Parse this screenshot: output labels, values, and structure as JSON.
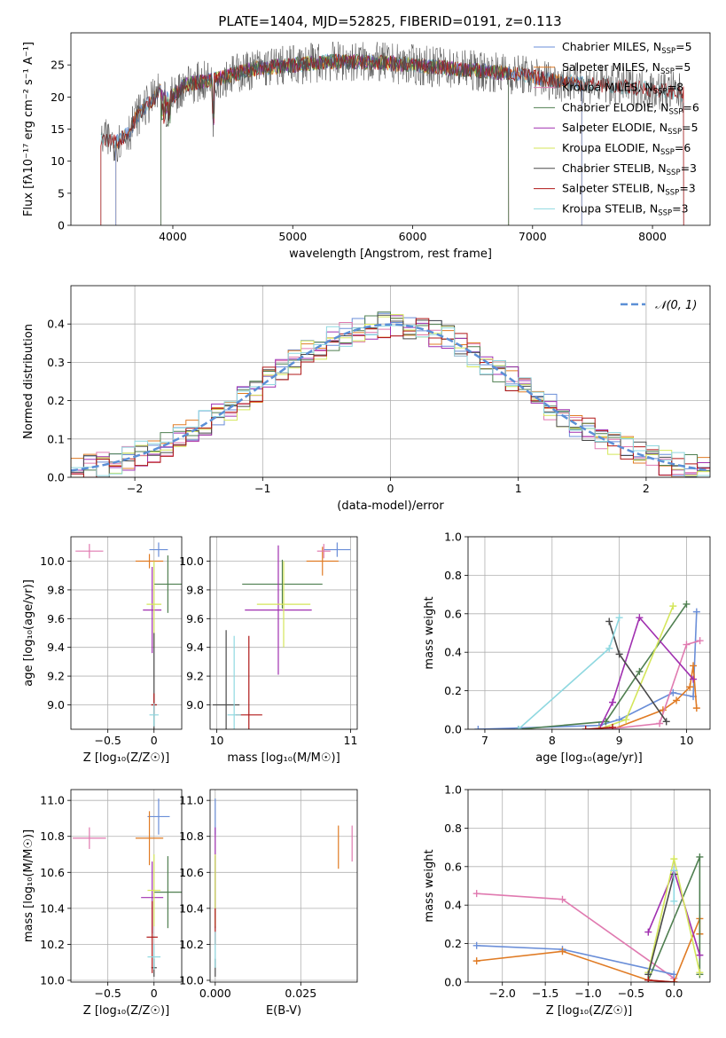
{
  "figure": {
    "title": "PLATE=1404, MJD=52825, FIBERID=0191, z=0.113"
  },
  "colors": {
    "Chabrier MILES": "#6a8ed8",
    "Salpeter MILES": "#e07b24",
    "Kroupa MILES": "#e07ab0",
    "Chabrier ELODIE": "#4f7f50",
    "Salpeter ELODIE": "#a030b0",
    "Kroupa ELODIE": "#d4e65a",
    "Chabrier STELIB": "#4a4a4a",
    "Salpeter STELIB": "#b01818",
    "Kroupa STELIB": "#8fd8e0",
    "gaussian": "#5b8fd6"
  },
  "chart_data": [
    {
      "id": "spectrum",
      "type": "line",
      "title": "PLATE=1404, MJD=52825, FIBERID=0191, z=0.113",
      "xlabel": "wavelength [Angstrom, rest frame]",
      "ylabel": "Flux [fλ10⁻¹⁷ erg cm⁻² s⁻¹ A⁻¹]",
      "xlim": [
        3150,
        8480
      ],
      "ylim": [
        0,
        30
      ],
      "xticks": [
        4000,
        5000,
        6000,
        7000,
        8000
      ],
      "yticks": [
        0,
        5,
        10,
        15,
        20,
        25
      ],
      "legend_position": "top-right",
      "legend": [
        {
          "label": "Chabrier MILES, N",
          "sub": "SSP",
          "suffix": "=5",
          "series": "Chabrier MILES"
        },
        {
          "label": "Salpeter MILES, N",
          "sub": "SSP",
          "suffix": "=5",
          "series": "Salpeter MILES"
        },
        {
          "label": "Kroupa MILES, N",
          "sub": "SSP",
          "suffix": "=8",
          "series": "Kroupa MILES"
        },
        {
          "label": "Chabrier ELODIE, N",
          "sub": "SSP",
          "suffix": "=6",
          "series": "Chabrier ELODIE"
        },
        {
          "label": "Salpeter ELODIE, N",
          "sub": "SSP",
          "suffix": "=5",
          "series": "Salpeter ELODIE"
        },
        {
          "label": "Kroupa ELODIE, N",
          "sub": "SSP",
          "suffix": "=6",
          "series": "Kroupa ELODIE"
        },
        {
          "label": "Chabrier STELIB, N",
          "sub": "SSP",
          "suffix": "=3",
          "series": "Chabrier STELIB"
        },
        {
          "label": "Salpeter STELIB, N",
          "sub": "SSP",
          "suffix": "=3",
          "series": "Salpeter STELIB"
        },
        {
          "label": "Kroupa STELIB, N",
          "sub": "SSP",
          "suffix": "=3",
          "series": "Kroupa STELIB"
        }
      ],
      "continuum": [
        [
          3400,
          13.5
        ],
        [
          3550,
          13
        ],
        [
          3650,
          15
        ],
        [
          3700,
          17
        ],
        [
          3800,
          19
        ],
        [
          3900,
          21
        ],
        [
          4000,
          20
        ],
        [
          4100,
          22
        ],
        [
          4300,
          22.5
        ],
        [
          4500,
          23.5
        ],
        [
          4700,
          24.5
        ],
        [
          5000,
          25
        ],
        [
          5300,
          25.5
        ],
        [
          5600,
          25.5
        ],
        [
          6000,
          25
        ],
        [
          6300,
          24.5
        ],
        [
          6600,
          24
        ],
        [
          6900,
          23.5
        ],
        [
          7200,
          22.5
        ],
        [
          7500,
          22
        ],
        [
          7800,
          21.5
        ],
        [
          8100,
          21
        ],
        [
          8260,
          20.5
        ]
      ],
      "model_coverage": {
        "MILES": [
          3525,
          7410
        ],
        "ELODIE": [
          3900,
          6800
        ],
        "STELIB": [
          3400,
          8260
        ]
      }
    },
    {
      "id": "residuals",
      "type": "histogram",
      "xlabel": "(data-model)/error",
      "ylabel": "Normed distribution",
      "xlim": [
        -2.5,
        2.5
      ],
      "ylim": [
        0,
        0.5
      ],
      "xticks": [
        -2,
        -1,
        0,
        1,
        2
      ],
      "yticks": [
        0.0,
        0.1,
        0.2,
        0.3,
        0.4
      ],
      "bin_width": 0.1,
      "legend_position": "top-right",
      "legend": [
        {
          "label": "𝒩(0, 1)",
          "style": "dashed"
        }
      ],
      "gaussian": {
        "mu": 0,
        "sigma": 1
      }
    },
    {
      "id": "age-vs-Z",
      "type": "scatter",
      "xlabel": "Z [log₁₀(Z/Z☉)]",
      "ylabel": "age  [log₁₀(age/yr)]",
      "xlim": [
        -0.9,
        0.3
      ],
      "ylim": [
        8.83,
        10.17
      ],
      "xticks": [
        -0.5,
        0.0
      ],
      "yticks": [
        9.0,
        9.2,
        9.4,
        9.6,
        9.8,
        10.0
      ],
      "points": [
        {
          "series": "Chabrier MILES",
          "x": 0.05,
          "y": 10.08,
          "xerr": 0.1,
          "yerr": 0.05
        },
        {
          "series": "Salpeter MILES",
          "x": -0.05,
          "y": 10.0,
          "xerr": 0.15,
          "yerr": 0.05
        },
        {
          "series": "Kroupa MILES",
          "x": -0.7,
          "y": 10.07,
          "xerr": 0.15,
          "yerr": 0.05
        },
        {
          "series": "Chabrier ELODIE",
          "x": 0.15,
          "y": 9.84,
          "xerr": 0.15,
          "yerr": 0.2
        },
        {
          "series": "Salpeter ELODIE",
          "x": -0.02,
          "y": 9.66,
          "xerr": 0.1,
          "yerr": 0.3
        },
        {
          "series": "Kroupa ELODIE",
          "x": 0.0,
          "y": 9.7,
          "xerr": 0.08,
          "yerr": 0.3
        },
        {
          "series": "Chabrier STELIB",
          "x": 0.0,
          "y": 9.0,
          "xerr": 0.03,
          "yerr": 0.5
        },
        {
          "series": "Salpeter STELIB",
          "x": 0.0,
          "y": 9.0,
          "xerr": 0.03,
          "yerr": 0.08
        },
        {
          "series": "Kroupa STELIB",
          "x": 0.0,
          "y": 8.93,
          "xerr": 0.05,
          "yerr": 0.08
        }
      ]
    },
    {
      "id": "age-vs-mass",
      "type": "scatter",
      "xlabel": "mass [log₁₀(M/M☉)]",
      "ylabel": "",
      "xlim": [
        9.95,
        11.05
      ],
      "ylim": [
        8.83,
        10.17
      ],
      "xticks": [
        10,
        11
      ],
      "yticks": [
        9.0,
        9.2,
        9.4,
        9.6,
        9.8,
        10.0
      ],
      "points": [
        {
          "series": "Chabrier MILES",
          "x": 10.9,
          "y": 10.08,
          "xerr": 0.1,
          "yerr": 0.05
        },
        {
          "series": "Salpeter MILES",
          "x": 10.79,
          "y": 10.0,
          "xerr": 0.12,
          "yerr": 0.1
        },
        {
          "series": "Kroupa MILES",
          "x": 10.8,
          "y": 10.07,
          "xerr": 0.05,
          "yerr": 0.05
        },
        {
          "series": "Chabrier ELODIE",
          "x": 10.49,
          "y": 9.84,
          "xerr": 0.3,
          "yerr": 0.17
        },
        {
          "series": "Salpeter ELODIE",
          "x": 10.46,
          "y": 9.66,
          "xerr": 0.25,
          "yerr": 0.45
        },
        {
          "series": "Kroupa ELODIE",
          "x": 10.5,
          "y": 9.7,
          "xerr": 0.2,
          "yerr": 0.3
        },
        {
          "series": "Chabrier STELIB",
          "x": 10.07,
          "y": 9.0,
          "xerr": 0.1,
          "yerr": 0.52
        },
        {
          "series": "Salpeter STELIB",
          "x": 10.24,
          "y": 8.93,
          "xerr": 0.1,
          "yerr": 0.55
        },
        {
          "series": "Kroupa STELIB",
          "x": 10.13,
          "y": 8.93,
          "xerr": 0.05,
          "yerr": 0.55
        }
      ]
    },
    {
      "id": "weight-vs-age",
      "type": "line",
      "xlabel": "age  [log₁₀(age/yr)]",
      "ylabel": "mass weight",
      "xlim": [
        6.75,
        10.35
      ],
      "ylim": [
        0,
        1
      ],
      "xticks": [
        7,
        8,
        9,
        10
      ],
      "yticks": [
        0.0,
        0.2,
        0.4,
        0.6,
        0.8,
        1.0
      ],
      "series": [
        {
          "name": "Chabrier MILES",
          "x": [
            6.9,
            8.7,
            9.0,
            9.8,
            10.1,
            10.15
          ],
          "y": [
            0.0,
            0.02,
            0.05,
            0.19,
            0.17,
            0.61
          ]
        },
        {
          "name": "Salpeter MILES",
          "x": [
            8.9,
            9.65,
            9.85,
            10.05,
            10.1,
            10.15
          ],
          "y": [
            0.0,
            0.1,
            0.15,
            0.22,
            0.33,
            0.11
          ]
        },
        {
          "name": "Kroupa MILES",
          "x": [
            8.8,
            9.6,
            10.0,
            10.2
          ],
          "y": [
            0.0,
            0.03,
            0.44,
            0.46
          ]
        },
        {
          "name": "Chabrier ELODIE",
          "x": [
            7.5,
            8.8,
            9.3,
            10.0
          ],
          "y": [
            0.0,
            0.04,
            0.3,
            0.65
          ]
        },
        {
          "name": "Salpeter ELODIE",
          "x": [
            8.7,
            8.9,
            9.3,
            10.1
          ],
          "y": [
            0.0,
            0.14,
            0.58,
            0.26
          ]
        },
        {
          "name": "Kroupa ELODIE",
          "x": [
            8.7,
            9.1,
            9.8
          ],
          "y": [
            0.0,
            0.05,
            0.64
          ]
        },
        {
          "name": "Chabrier STELIB",
          "x": [
            8.85,
            9.0,
            9.7
          ],
          "y": [
            0.56,
            0.39,
            0.04
          ]
        },
        {
          "name": "Salpeter STELIB",
          "x": [
            8.5,
            8.9
          ],
          "y": [
            0.0,
            0.01
          ]
        },
        {
          "name": "Kroupa STELIB",
          "x": [
            7.5,
            8.85,
            9.0
          ],
          "y": [
            0.0,
            0.42,
            0.58
          ]
        }
      ]
    },
    {
      "id": "mass-vs-Z",
      "type": "scatter",
      "xlabel": "Z [log₁₀(Z/Z☉)]",
      "ylabel": "mass [log₁₀(M/M☉)]",
      "xlim": [
        -0.9,
        0.3
      ],
      "ylim": [
        9.99,
        11.06
      ],
      "xticks": [
        -0.5,
        0.0
      ],
      "yticks": [
        10.0,
        10.2,
        10.4,
        10.6,
        10.8,
        11.0
      ],
      "points": [
        {
          "series": "Chabrier MILES",
          "x": 0.05,
          "y": 10.91,
          "xerr": 0.12,
          "yerr": 0.1
        },
        {
          "series": "Salpeter MILES",
          "x": -0.05,
          "y": 10.79,
          "xerr": 0.15,
          "yerr": 0.15
        },
        {
          "series": "Kroupa MILES",
          "x": -0.7,
          "y": 10.79,
          "xerr": 0.18,
          "yerr": 0.06
        },
        {
          "series": "Chabrier ELODIE",
          "x": 0.15,
          "y": 10.49,
          "xerr": 0.15,
          "yerr": 0.2
        },
        {
          "series": "Salpeter ELODIE",
          "x": -0.02,
          "y": 10.46,
          "xerr": 0.12,
          "yerr": 0.2
        },
        {
          "series": "Kroupa ELODIE",
          "x": 0.0,
          "y": 10.5,
          "xerr": 0.07,
          "yerr": 0.2
        },
        {
          "series": "Chabrier STELIB",
          "x": 0.0,
          "y": 10.07,
          "xerr": 0.03,
          "yerr": 0.05
        },
        {
          "series": "Salpeter STELIB",
          "x": -0.02,
          "y": 10.24,
          "xerr": 0.06,
          "yerr": 0.2
        },
        {
          "series": "Kroupa STELIB",
          "x": 0.0,
          "y": 10.13,
          "xerr": 0.07,
          "yerr": 0.07
        }
      ]
    },
    {
      "id": "mass-vs-EBV",
      "type": "scatter",
      "xlabel": "E(B-V)",
      "ylabel": "",
      "xlim": [
        -0.0015,
        0.0415
      ],
      "ylim": [
        9.99,
        11.06
      ],
      "xticks": [
        0.0,
        0.025
      ],
      "ytick_labels": [
        "10.0",
        "10.2",
        "10.4",
        "10.6",
        "10.8",
        "11.0"
      ],
      "xtick_labels": [
        "0.000",
        "0.025"
      ],
      "yticks": [
        10.0,
        10.2,
        10.4,
        10.6,
        10.8,
        11.0
      ],
      "points": [
        {
          "series": "Chabrier MILES",
          "x": 0.0,
          "y": 10.91,
          "xerr": 0.0,
          "yerr": 0.1
        },
        {
          "series": "Salpeter MILES",
          "x": 0.036,
          "y": 10.74,
          "xerr": 0.0,
          "yerr": 0.12
        },
        {
          "series": "Kroupa MILES",
          "x": 0.04,
          "y": 10.76,
          "xerr": 0.0,
          "yerr": 0.1
        },
        {
          "series": "Chabrier ELODIE",
          "x": 0.0,
          "y": 10.49,
          "xerr": 0.0,
          "yerr": 0.2
        },
        {
          "series": "Salpeter ELODIE",
          "x": 0.0,
          "y": 10.6,
          "xerr": 0.0,
          "yerr": 0.25
        },
        {
          "series": "Kroupa ELODIE",
          "x": 0.0,
          "y": 10.5,
          "xerr": 0.0,
          "yerr": 0.2
        },
        {
          "series": "Chabrier STELIB",
          "x": 0.0,
          "y": 10.07,
          "xerr": 0.0,
          "yerr": 0.05
        },
        {
          "series": "Salpeter STELIB",
          "x": 0.0,
          "y": 10.3,
          "xerr": 0.0,
          "yerr": 0.1
        },
        {
          "series": "Kroupa STELIB",
          "x": 0.0,
          "y": 10.17,
          "xerr": 0.0,
          "yerr": 0.1
        }
      ]
    },
    {
      "id": "weight-vs-Z",
      "type": "line",
      "xlabel": "Z [log₁₀(Z/Z☉)]",
      "ylabel": "mass weight",
      "xlim": [
        -2.4,
        0.42
      ],
      "ylim": [
        0,
        1
      ],
      "xticks": [
        -2.0,
        -1.5,
        -1.0,
        -0.5,
        0.0
      ],
      "xtick_labels": [
        "−2.0",
        "−1.5",
        "−1.0",
        "−0.5",
        "0.0"
      ],
      "yticks": [
        0.0,
        0.2,
        0.4,
        0.6,
        0.8,
        1.0
      ],
      "series": [
        {
          "name": "Kroupa MILES",
          "x": [
            -2.3,
            -1.3,
            0.0
          ],
          "y": [
            0.46,
            0.43,
            0.02
          ]
        },
        {
          "name": "Chabrier MILES",
          "x": [
            -2.3,
            -1.3,
            0.0
          ],
          "y": [
            0.19,
            0.17,
            0.04
          ]
        },
        {
          "name": "Salpeter MILES",
          "x": [
            -2.3,
            -1.3,
            -0.3,
            0.0,
            0.3,
            0.3
          ],
          "y": [
            0.11,
            0.16,
            0.01,
            0.0,
            0.33,
            0.25
          ]
        },
        {
          "name": "Chabrier ELODIE",
          "x": [
            -0.3,
            0.3,
            0.3
          ],
          "y": [
            0.01,
            0.65,
            0.04
          ]
        },
        {
          "name": "Salpeter ELODIE",
          "x": [
            -0.3,
            0.0,
            0.3
          ],
          "y": [
            0.26,
            0.58,
            0.14
          ]
        },
        {
          "name": "Kroupa ELODIE",
          "x": [
            -0.3,
            0.0,
            0.3
          ],
          "y": [
            0.05,
            0.64,
            0.05
          ]
        },
        {
          "name": "Chabrier STELIB",
          "x": [
            -0.3,
            0.0
          ],
          "y": [
            0.04,
            0.56
          ]
        },
        {
          "name": "Salpeter STELIB",
          "x": [
            -0.3,
            0.0
          ],
          "y": [
            0.01,
            0.0
          ]
        },
        {
          "name": "Kroupa STELIB",
          "x": [
            0.0,
            0.0
          ],
          "y": [
            0.42,
            0.58
          ]
        }
      ]
    }
  ]
}
